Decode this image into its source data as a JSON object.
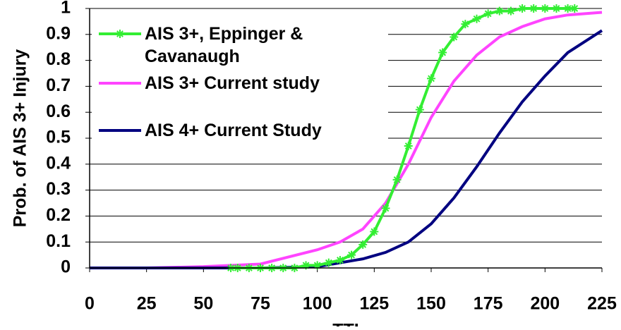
{
  "chart_data": {
    "type": "line",
    "xlabel": "TTI",
    "ylabel": "Prob. of AIS 3+ Injury",
    "xlim": [
      0,
      225
    ],
    "xticks": [
      0,
      25,
      50,
      75,
      100,
      125,
      150,
      175,
      200,
      225
    ],
    "ylim": [
      0,
      1
    ],
    "yticks": [
      0,
      0.1,
      0.2,
      0.3,
      0.4,
      0.5,
      0.6,
      0.7,
      0.8,
      0.9,
      1
    ],
    "grid": true,
    "series": [
      {
        "name": "AIS 3+, Eppinger & Cavanaugh",
        "color": "#33ee33",
        "marker": "asterisk",
        "x": [
          62,
          65,
          70,
          75,
          80,
          85,
          90,
          95,
          100,
          105,
          110,
          115,
          120,
          125,
          130,
          135,
          140,
          145,
          150,
          155,
          160,
          165,
          170,
          175,
          180,
          185,
          190,
          195,
          200,
          205,
          210,
          213
        ],
        "values": [
          0,
          0,
          0,
          0,
          0,
          0,
          0,
          0.01,
          0.01,
          0.02,
          0.03,
          0.05,
          0.09,
          0.14,
          0.23,
          0.34,
          0.47,
          0.61,
          0.73,
          0.83,
          0.89,
          0.94,
          0.96,
          0.98,
          0.99,
          0.99,
          1,
          1,
          1,
          1,
          1,
          1
        ]
      },
      {
        "name": "AIS 3+ Current study",
        "color": "#ff44ff",
        "x": [
          0,
          25,
          50,
          75,
          100,
          110,
          120,
          130,
          140,
          150,
          160,
          170,
          180,
          190,
          200,
          210,
          225
        ],
        "values": [
          0,
          0,
          0.005,
          0.015,
          0.07,
          0.1,
          0.15,
          0.25,
          0.4,
          0.58,
          0.72,
          0.82,
          0.89,
          0.93,
          0.96,
          0.975,
          0.985
        ]
      },
      {
        "name": "AIS 4+ Current Study",
        "color": "#000080",
        "x": [
          0,
          25,
          50,
          75,
          100,
          110,
          120,
          130,
          140,
          150,
          160,
          170,
          180,
          190,
          200,
          210,
          225
        ],
        "values": [
          0,
          0,
          0,
          0,
          0.005,
          0.02,
          0.035,
          0.06,
          0.1,
          0.17,
          0.27,
          0.39,
          0.52,
          0.64,
          0.74,
          0.83,
          0.915
        ]
      }
    ]
  }
}
